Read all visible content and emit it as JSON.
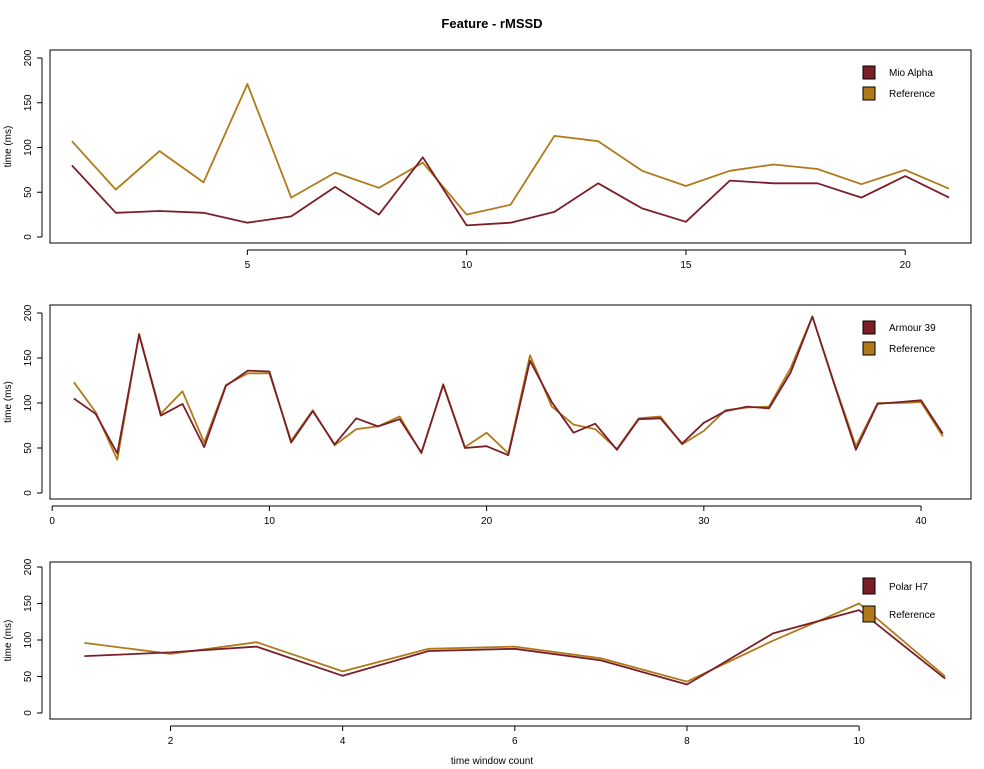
{
  "figure": {
    "title": "Feature - rMSSD",
    "xlabel": "time window count"
  },
  "colors": {
    "device": "#7a1f28",
    "reference": "#b07a1a"
  },
  "chart_data": [
    {
      "type": "line",
      "title": "",
      "xlabel": "",
      "ylabel": "time (ms)",
      "xlim": [
        0.5,
        21.5
      ],
      "ylim": [
        0,
        200
      ],
      "xticks": [
        5,
        10,
        15,
        20
      ],
      "yticks": [
        0,
        50,
        100,
        150,
        200
      ],
      "grid": false,
      "legend_position": "top-right",
      "x": [
        1,
        2,
        3,
        4,
        5,
        6,
        7,
        8,
        9,
        10,
        11,
        12,
        13,
        14,
        15,
        16,
        17,
        18,
        19,
        20,
        21
      ],
      "series": [
        {
          "name": "Mio Alpha",
          "color_key": "device",
          "values": [
            80,
            27,
            29,
            27,
            16,
            23,
            56,
            25,
            89,
            13,
            16,
            28,
            60,
            32,
            17,
            63,
            60,
            60,
            44,
            68,
            44
          ]
        },
        {
          "name": "Reference",
          "color_key": "reference",
          "values": [
            107,
            53,
            96,
            61,
            171,
            44,
            72,
            55,
            83,
            25,
            36,
            113,
            107,
            74,
            57,
            74,
            81,
            76,
            59,
            75,
            54
          ]
        }
      ]
    },
    {
      "type": "line",
      "title": "",
      "xlabel": "",
      "ylabel": "time (ms)",
      "xlim": [
        -0.1,
        42.3
      ],
      "ylim": [
        0,
        200
      ],
      "xticks": [
        0,
        10,
        20,
        30,
        40
      ],
      "yticks": [
        0,
        50,
        100,
        150,
        200
      ],
      "grid": false,
      "legend_position": "top-right",
      "x": [
        1,
        2,
        3,
        4,
        5,
        6,
        7,
        8,
        9,
        10,
        11,
        12,
        13,
        14,
        15,
        16,
        17,
        18,
        19,
        20,
        21,
        22,
        23,
        24,
        25,
        26,
        27,
        28,
        29,
        30,
        31,
        32,
        33,
        34,
        35,
        36,
        37,
        38,
        39,
        40,
        41
      ],
      "series": [
        {
          "name": "Armour 39",
          "color_key": "device",
          "values": [
            105,
            88,
            44,
            176,
            86,
            99,
            51,
            119,
            136,
            135,
            56,
            91,
            54,
            83,
            74,
            82,
            45,
            120,
            50,
            52,
            42,
            147,
            101,
            67,
            77,
            48,
            82,
            83,
            55,
            78,
            91,
            96,
            94,
            134,
            196,
            121,
            48,
            99,
            101,
            103,
            66
          ]
        },
        {
          "name": "Reference",
          "color_key": "reference",
          "values": [
            123,
            90,
            37,
            177,
            88,
            113,
            56,
            120,
            133,
            133,
            58,
            92,
            53,
            71,
            74,
            85,
            44,
            121,
            51,
            67,
            44,
            153,
            96,
            76,
            71,
            49,
            83,
            85,
            54,
            69,
            92,
            95,
            96,
            139,
            196,
            122,
            52,
            100,
            100,
            101,
            63
          ]
        }
      ]
    },
    {
      "type": "line",
      "title": "",
      "xlabel": "",
      "ylabel": "time (ms)",
      "xlim": [
        0.6,
        11.3
      ],
      "ylim": [
        0,
        200
      ],
      "xticks": [
        2,
        4,
        6,
        8,
        10
      ],
      "yticks": [
        0,
        50,
        100,
        150,
        200
      ],
      "grid": false,
      "legend_position": "top-right",
      "x": [
        1,
        2,
        3,
        4,
        5,
        6,
        7,
        8,
        9,
        10,
        11
      ],
      "series": [
        {
          "name": "Polar H7",
          "color_key": "device",
          "values": [
            78,
            83,
            91,
            51,
            85,
            88,
            72,
            39,
            109,
            141,
            47
          ]
        },
        {
          "name": "Reference",
          "color_key": "reference",
          "values": [
            96,
            81,
            97,
            57,
            88,
            91,
            75,
            43,
            99,
            150,
            50
          ]
        }
      ]
    }
  ]
}
